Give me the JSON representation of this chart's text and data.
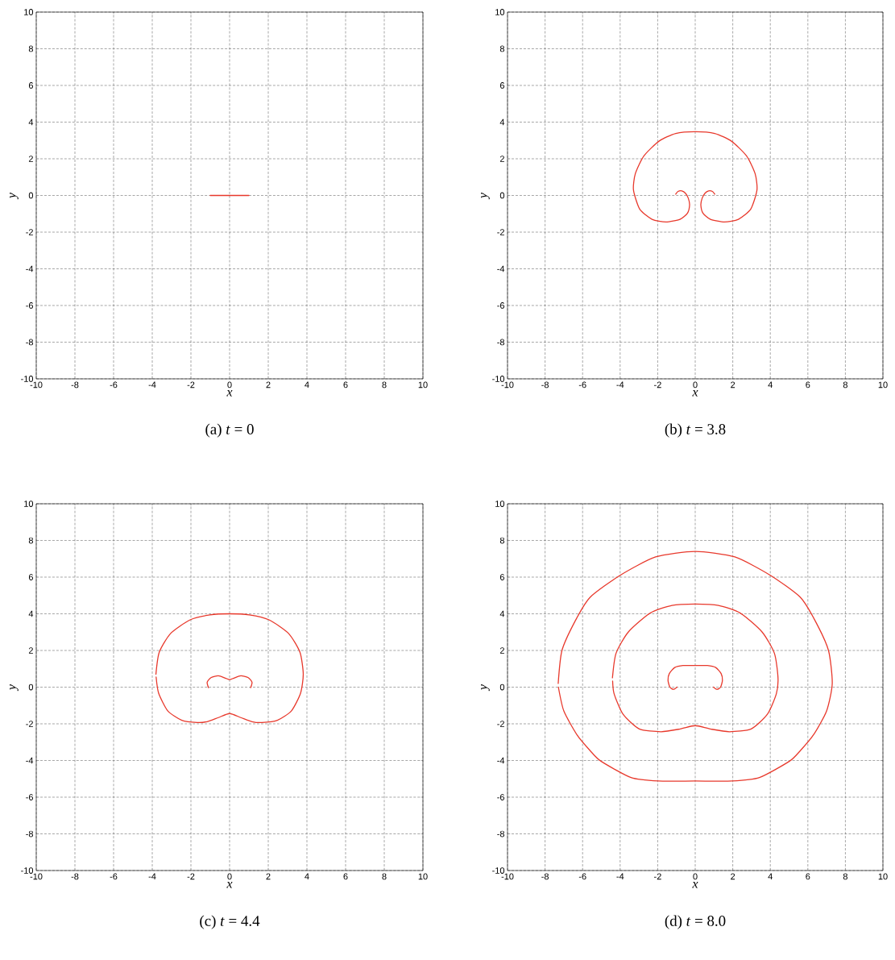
{
  "chart_data": [
    {
      "type": "line",
      "title": "(a) *t* = 0",
      "xlabel": "x",
      "ylabel": "y",
      "xlim": [
        -10,
        10
      ],
      "ylim": [
        -10,
        10
      ],
      "xticks": [
        -10,
        -8,
        -6,
        -4,
        -2,
        0,
        2,
        4,
        6,
        8,
        10
      ],
      "yticks": [
        -10,
        -8,
        -6,
        -4,
        -2,
        0,
        2,
        4,
        6,
        8,
        10
      ],
      "grid": true,
      "line_style": "solid",
      "series": [
        {
          "color": "#e8392c",
          "x": [
            -1,
            1
          ],
          "values": [
            0,
            0
          ]
        }
      ]
    },
    {
      "type": "line",
      "title": "(b) *t* = 3.8",
      "xlabel": "x",
      "ylabel": "y",
      "xlim": [
        -10,
        10
      ],
      "ylim": [
        -10,
        10
      ],
      "xticks": [
        -10,
        -8,
        -6,
        -4,
        -2,
        0,
        2,
        4,
        6,
        8,
        10
      ],
      "yticks": [
        -10,
        -8,
        -6,
        -4,
        -2,
        0,
        2,
        4,
        6,
        8,
        10
      ],
      "grid": true,
      "line_style": "solid",
      "series": [
        {
          "color": "#e8392c",
          "x": [
            -1.04,
            -0.92,
            -0.71,
            -0.52,
            -0.37,
            -0.3,
            -0.41,
            -0.81,
            -1.56,
            -2.3,
            -2.96,
            -3.29,
            -3.19,
            -2.74,
            -1.93,
            -1.04,
            0,
            1.04,
            1.93,
            2.74,
            3.19,
            3.29,
            2.96,
            2.3,
            1.56,
            0.81,
            0.41,
            0.3,
            0.37,
            0.52,
            0.71,
            0.92,
            1.04
          ],
          "values": [
            0.07,
            0.22,
            0.25,
            0.12,
            -0.15,
            -0.52,
            -0.96,
            -1.3,
            -1.45,
            -1.3,
            -0.74,
            0.3,
            1.19,
            2.15,
            2.96,
            3.38,
            3.48,
            3.38,
            2.96,
            2.15,
            1.19,
            0.3,
            -0.74,
            -1.3,
            -1.45,
            -1.3,
            -0.96,
            -0.52,
            -0.15,
            0.12,
            0.25,
            0.22,
            0.07
          ]
        }
      ]
    },
    {
      "type": "line",
      "title": "(c) *t* = 4.4",
      "xlabel": "x",
      "ylabel": "y",
      "xlim": [
        -10,
        10
      ],
      "ylim": [
        -10,
        10
      ],
      "xticks": [
        -10,
        -8,
        -6,
        -4,
        -2,
        0,
        2,
        4,
        6,
        8,
        10
      ],
      "yticks": [
        -10,
        -8,
        -6,
        -4,
        -2,
        0,
        2,
        4,
        6,
        8,
        10
      ],
      "grid": true,
      "line_style": "solid",
      "series": [
        {
          "color": "#e8392c",
          "x": [
            -3.81,
            -3.64,
            -3.05,
            -2.04,
            -1.02,
            0,
            1.02,
            2.04,
            3.05,
            3.64,
            3.81,
            3.67,
            3.2,
            2.47,
            1.67,
            1.16,
            0.58,
            0,
            -0.58,
            -1.16,
            -1.67,
            -2.47,
            -3.2,
            -3.67,
            -3.8
          ],
          "values": [
            0.71,
            1.9,
            2.93,
            3.67,
            3.94,
            4.0,
            3.94,
            3.67,
            2.93,
            1.9,
            0.71,
            -0.33,
            -1.29,
            -1.81,
            -1.93,
            -1.88,
            -1.66,
            -1.44,
            -1.66,
            -1.88,
            -1.93,
            -1.81,
            -1.29,
            -0.33,
            0.55
          ]
        },
        {
          "color": "#e8392c",
          "x": [
            -1.09,
            -1.16,
            -0.95,
            -0.58,
            -0.22,
            0,
            0.22,
            0.58,
            0.95,
            1.16,
            1.09
          ],
          "values": [
            -0.03,
            0.27,
            0.53,
            0.62,
            0.49,
            0.41,
            0.49,
            0.62,
            0.53,
            0.27,
            -0.03
          ]
        }
      ]
    },
    {
      "type": "line",
      "title": "(d) *t* = 8.0",
      "xlabel": "x",
      "ylabel": "y",
      "xlim": [
        -10,
        10
      ],
      "ylim": [
        -10,
        10
      ],
      "xticks": [
        -10,
        -8,
        -6,
        -4,
        -2,
        0,
        2,
        4,
        6,
        8,
        10
      ],
      "yticks": [
        -10,
        -8,
        -6,
        -4,
        -2,
        0,
        2,
        4,
        6,
        8,
        10
      ],
      "grid": true,
      "line_style": "solid",
      "series": [
        {
          "color": "#e8392c",
          "x": [
            -7.3,
            -7.1,
            -6.4,
            -5.6,
            -4.0,
            -2.11,
            0,
            2.11,
            4.0,
            5.6,
            6.4,
            7.1,
            7.3,
            7.0,
            6.3,
            5.6,
            5.02,
            3.42,
            1.96,
            0,
            -1.96,
            -3.42,
            -5.02,
            -5.6,
            -6.3,
            -7.0,
            -7.29
          ],
          "values": [
            0.2,
            2.0,
            3.6,
            4.9,
            6.1,
            7.1,
            7.4,
            7.1,
            6.1,
            4.9,
            3.6,
            2.0,
            0.2,
            -1.3,
            -2.6,
            -3.46,
            -4.04,
            -4.93,
            -5.12,
            -5.12,
            -5.12,
            -4.93,
            -4.04,
            -3.46,
            -2.6,
            -1.3,
            0.0
          ]
        },
        {
          "color": "#e8392c",
          "x": [
            -4.41,
            -4.22,
            -3.56,
            -2.4,
            -1.24,
            0,
            1.24,
            2.4,
            3.56,
            4.22,
            4.41,
            4.32,
            3.85,
            2.98,
            1.82,
            0.8,
            0,
            -0.8,
            -1.82,
            -2.98,
            -3.85,
            -4.32,
            -4.4
          ],
          "values": [
            0.51,
            1.84,
            3.01,
            4.04,
            4.46,
            4.53,
            4.46,
            4.04,
            3.01,
            1.84,
            0.51,
            -0.37,
            -1.47,
            -2.28,
            -2.43,
            -2.28,
            -2.1,
            -2.28,
            -2.43,
            -2.28,
            -1.47,
            -0.37,
            0.33
          ]
        },
        {
          "color": "#e8392c",
          "x": [
            -0.97,
            -1.16,
            -1.35,
            -1.45,
            -1.38,
            -1.09,
            -0.65,
            0,
            0.65,
            1.09,
            1.38,
            1.45,
            1.35,
            1.16,
            0.97
          ],
          "values": [
            0,
            -0.12,
            0,
            0.37,
            0.74,
            1.07,
            1.18,
            1.18,
            1.18,
            1.07,
            0.74,
            0.37,
            0,
            -0.12,
            0
          ]
        }
      ]
    }
  ]
}
